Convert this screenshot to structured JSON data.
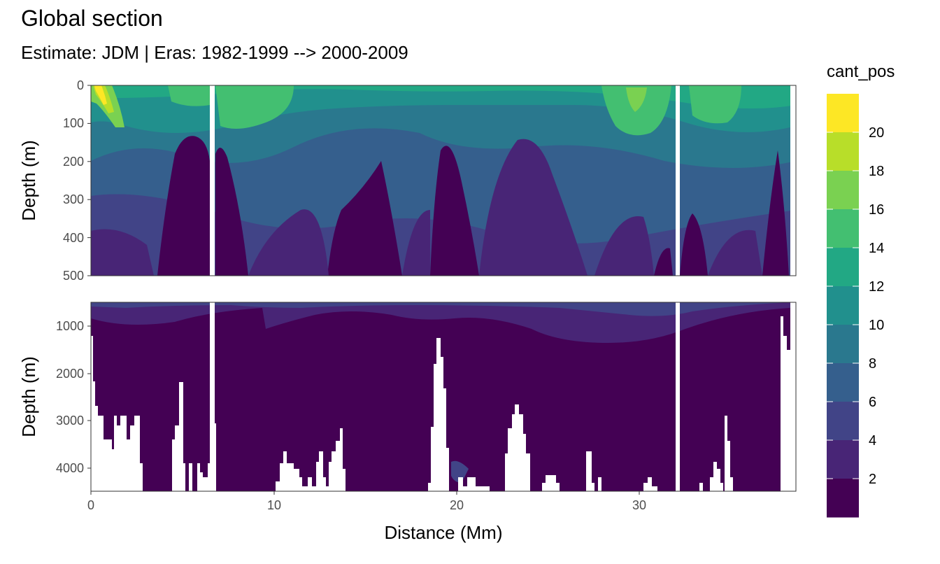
{
  "chart_data": {
    "type": "heatmap",
    "title": "Global section",
    "subtitle": "Estimate: JDM  | Eras: 1982-1999 --> 2000-2009",
    "xlabel": "Distance (Mm)",
    "ylabel": "Depth (m)",
    "x_ticks": [
      "0",
      "10",
      "20",
      "30"
    ],
    "xlim": [
      0,
      38.5
    ],
    "panels": [
      {
        "name": "upper",
        "ylim": [
          0,
          500
        ],
        "y_ticks": [
          "0",
          "100",
          "200",
          "300",
          "400",
          "500"
        ],
        "gaps_x": [
          6.6,
          32.2
        ]
      },
      {
        "name": "lower",
        "ylim": [
          500,
          4500
        ],
        "y_ticks": [
          "1000",
          "2000",
          "3000",
          "4000"
        ],
        "gaps_x": [
          6.6,
          32.2
        ]
      }
    ],
    "legend": {
      "title": "cant_pos",
      "position": "right",
      "labels": [
        "20",
        "18",
        "16",
        "14",
        "12",
        "10",
        "8",
        "6",
        "4",
        "2"
      ],
      "colors": [
        "#fde725",
        "#b8de29",
        "#7ad151",
        "#43bf71",
        "#22a884",
        "#21908d",
        "#2a788e",
        "#355f8d",
        "#414487",
        "#482576",
        "#440154"
      ]
    },
    "grid": true
  }
}
